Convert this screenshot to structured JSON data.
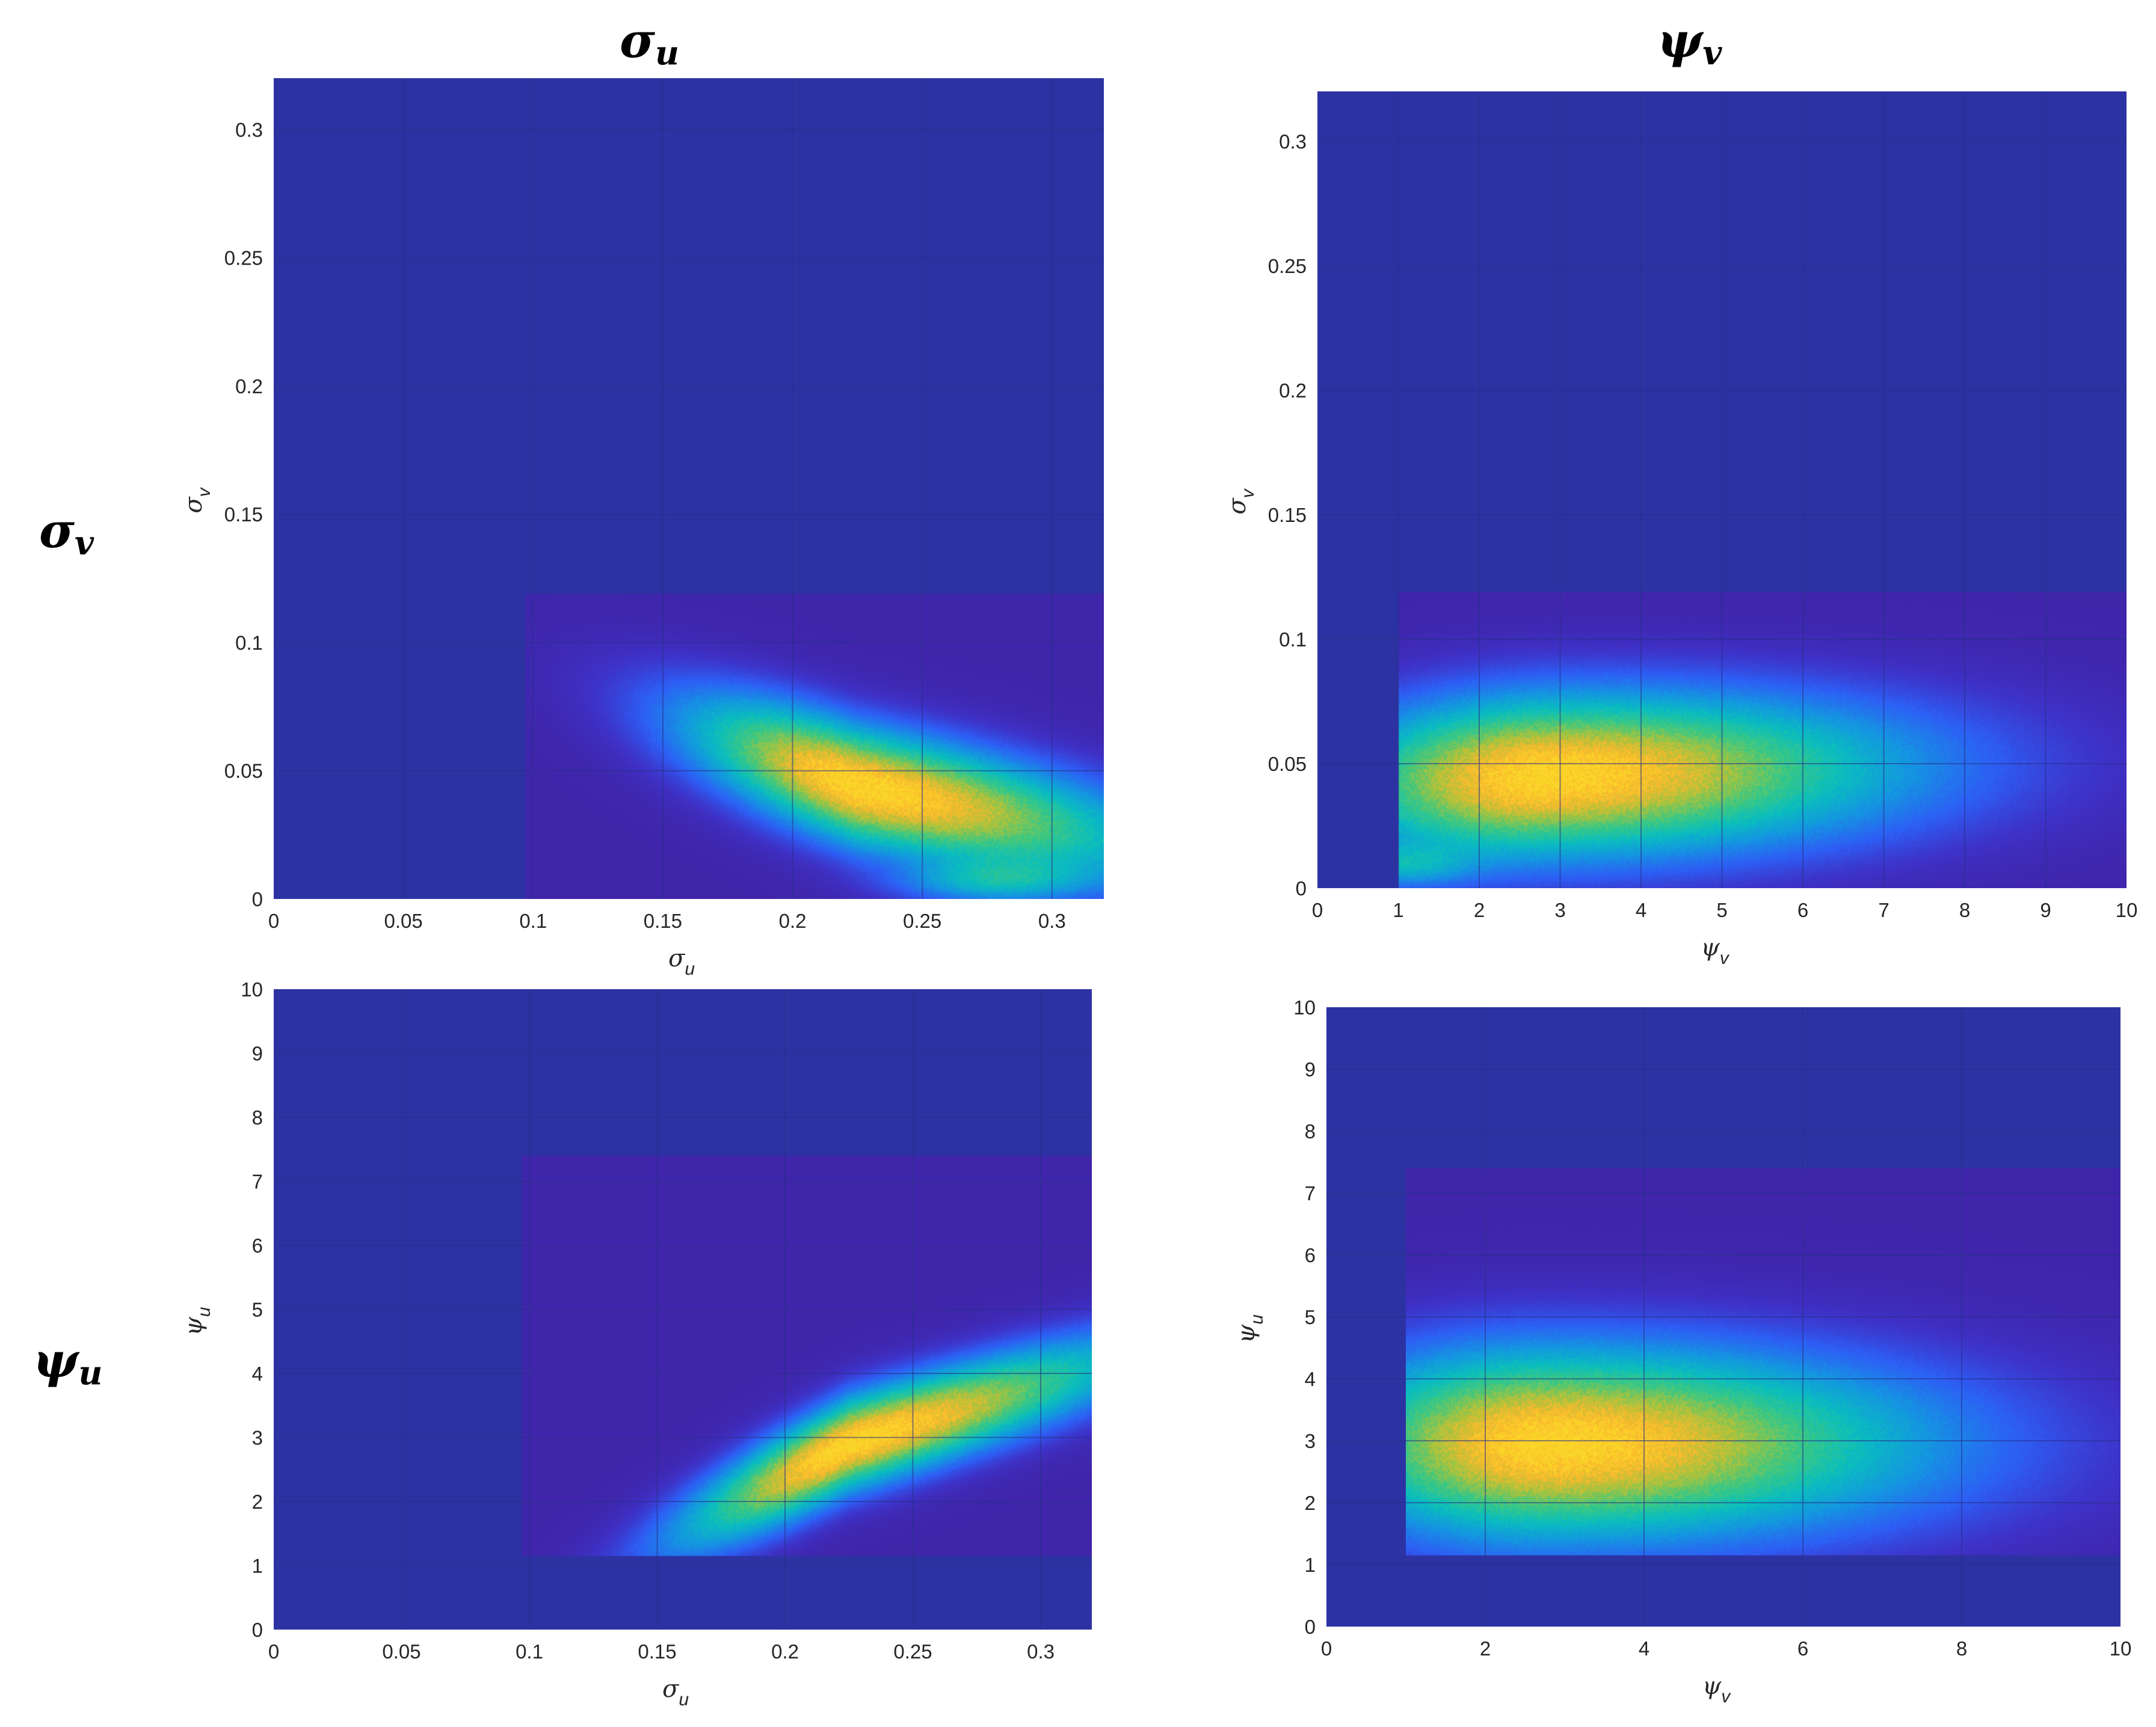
{
  "labels": {
    "col1_main": "σ",
    "col1_sub": "u",
    "col2_main": "ψ",
    "col2_sub": "v",
    "row1_main": "σ",
    "row1_sub": "v",
    "row2_main": "ψ",
    "row2_sub": "u"
  },
  "colors": {
    "background_outside": "#2d32a3",
    "background_inside": "#3f25aa",
    "grid": "#273088"
  },
  "chart_data": [
    {
      "type": "heatmap",
      "id": "sigma_u_vs_sigma_v",
      "xlabel": "σ",
      "xlabel_sub": "u",
      "ylabel": "σ",
      "ylabel_sub": "v",
      "xlim": [
        0,
        0.32
      ],
      "ylim": [
        0,
        0.32
      ],
      "xticks": [
        0,
        0.05,
        0.1,
        0.15,
        0.2,
        0.25,
        0.3
      ],
      "xtick_labels": [
        "0",
        "0.05",
        "0.1",
        "0.15",
        "0.2",
        "0.25",
        "0.3"
      ],
      "yticks": [
        0,
        0.05,
        0.1,
        0.15,
        0.2,
        0.25,
        0.3
      ],
      "ytick_labels": [
        "0",
        "0.05",
        "0.1",
        "0.15",
        "0.2",
        "0.25",
        "0.3"
      ],
      "support": {
        "x": [
          0.097,
          0.32
        ],
        "y": [
          0,
          0.119
        ]
      },
      "mode": {
        "x": 0.225,
        "y": 0.044
      },
      "spread": {
        "x": 0.04,
        "y": 0.016
      },
      "correlation": -0.7,
      "tail": {
        "x": 0.28,
        "y": 0.008,
        "spread_x": 0.02,
        "spread_y": 0.005,
        "weight": 0.25
      }
    },
    {
      "type": "heatmap",
      "id": "psi_v_vs_sigma_v",
      "xlabel": "ψ",
      "xlabel_sub": "v",
      "ylabel": "σ",
      "ylabel_sub": "v",
      "xlim": [
        0,
        10
      ],
      "ylim": [
        0,
        0.32
      ],
      "xticks": [
        0,
        1,
        2,
        3,
        4,
        5,
        6,
        7,
        8,
        9,
        10
      ],
      "xtick_labels": [
        "0",
        "1",
        "2",
        "3",
        "4",
        "5",
        "6",
        "7",
        "8",
        "9",
        "10"
      ],
      "yticks": [
        0,
        0.05,
        0.1,
        0.15,
        0.2,
        0.25,
        0.3
      ],
      "ytick_labels": [
        "0",
        "0.05",
        "0.1",
        "0.15",
        "0.2",
        "0.25",
        "0.3"
      ],
      "support": {
        "x": [
          1.0,
          10
        ],
        "y": [
          0,
          0.119
        ]
      },
      "mode": {
        "x": 2.8,
        "y": 0.045
      },
      "spread": {
        "x": 1.6,
        "y": 0.016
      },
      "correlation": 0.1,
      "tail": {
        "x": 1.1,
        "y": 0.01,
        "spread_x": 0.5,
        "spread_y": 0.005,
        "weight": 0.2
      }
    },
    {
      "type": "heatmap",
      "id": "sigma_u_vs_psi_u",
      "xlabel": "σ",
      "xlabel_sub": "u",
      "ylabel": "ψ",
      "ylabel_sub": "u",
      "xlim": [
        0,
        0.32
      ],
      "ylim": [
        0,
        10
      ],
      "xticks": [
        0,
        0.05,
        0.1,
        0.15,
        0.2,
        0.25,
        0.3
      ],
      "xtick_labels": [
        "0",
        "0.05",
        "0.1",
        "0.15",
        "0.2",
        "0.25",
        "0.3"
      ],
      "yticks": [
        0,
        1,
        2,
        3,
        4,
        5,
        6,
        7,
        8,
        9,
        10
      ],
      "ytick_labels": [
        "0",
        "1",
        "2",
        "3",
        "4",
        "5",
        "6",
        "7",
        "8",
        "9",
        "10"
      ],
      "support": {
        "x": [
          0.097,
          0.32
        ],
        "y": [
          1.15,
          7.4
        ]
      },
      "mode": {
        "x": 0.225,
        "y": 2.9
      },
      "spread": {
        "x": 0.04,
        "y": 0.75
      },
      "correlation": 0.88,
      "tail": null
    },
    {
      "type": "heatmap",
      "id": "psi_v_vs_psi_u",
      "xlabel": "ψ",
      "xlabel_sub": "v",
      "ylabel": "ψ",
      "ylabel_sub": "u",
      "xlim": [
        0,
        10
      ],
      "ylim": [
        0,
        10
      ],
      "xticks": [
        0,
        2,
        4,
        6,
        8,
        10
      ],
      "xtick_labels": [
        "0",
        "2",
        "4",
        "6",
        "8",
        "10"
      ],
      "yticks": [
        0,
        1,
        2,
        3,
        4,
        5,
        6,
        7,
        8,
        9,
        10
      ],
      "ytick_labels": [
        "0",
        "1",
        "2",
        "3",
        "4",
        "5",
        "6",
        "7",
        "8",
        "9",
        "10"
      ],
      "support": {
        "x": [
          1.0,
          10
        ],
        "y": [
          1.15,
          7.4
        ]
      },
      "mode": {
        "x": 2.8,
        "y": 2.95
      },
      "spread": {
        "x": 1.7,
        "y": 0.75
      },
      "correlation": 0.0,
      "tail": null
    }
  ]
}
